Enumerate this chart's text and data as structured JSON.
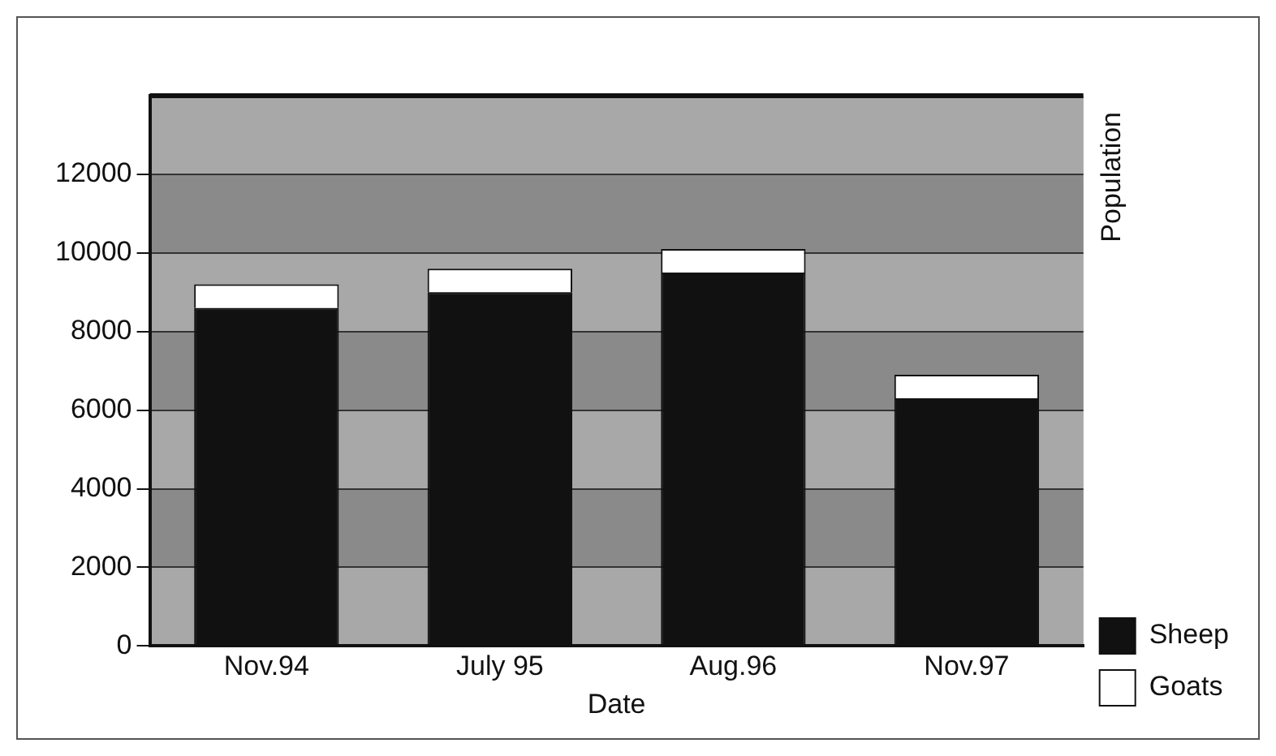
{
  "chart_data": {
    "type": "bar",
    "stacked": true,
    "xlabel": "Date",
    "ylabel": "Population",
    "categories": [
      "Nov.94",
      "July 95",
      "Aug.96",
      "Nov.97"
    ],
    "series": [
      {
        "name": "Sheep",
        "color": "#111111",
        "values": [
          8600,
          9000,
          9500,
          6300
        ]
      },
      {
        "name": "Goats",
        "color": "#ffffff",
        "values": [
          600,
          600,
          600,
          600
        ]
      }
    ],
    "ylim": [
      0,
      14000
    ],
    "yticks": [
      0,
      2000,
      4000,
      6000,
      8000,
      10000,
      12000
    ],
    "grid": "y",
    "legend": "bottom right"
  }
}
